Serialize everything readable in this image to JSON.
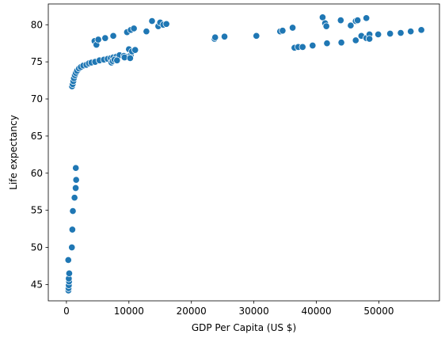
{
  "chart_data": {
    "type": "scatter",
    "xlabel": "GDP Per Capita (US $)",
    "ylabel": "Life expectancy",
    "xlim": [
      -2900,
      59700
    ],
    "ylim": [
      42.8,
      82.8
    ],
    "xticks": [
      0,
      10000,
      20000,
      30000,
      40000,
      50000
    ],
    "yticks": [
      45,
      50,
      55,
      60,
      65,
      70,
      75,
      80
    ],
    "grid": false,
    "legend": "none",
    "marker_color": "#1f77b4",
    "marker_edge_color": "#ffffff",
    "series": [
      {
        "points": [
          [
            320,
            44.2
          ],
          [
            340,
            44.5
          ],
          [
            380,
            44.9
          ],
          [
            420,
            45.4
          ],
          [
            380,
            45.8
          ],
          [
            450,
            46.5
          ],
          [
            300,
            48.3
          ],
          [
            870,
            50.0
          ],
          [
            950,
            52.4
          ],
          [
            1030,
            54.9
          ],
          [
            1300,
            56.7
          ],
          [
            1480,
            58.0
          ],
          [
            1560,
            59.1
          ],
          [
            1500,
            60.7
          ],
          [
            900,
            71.7
          ],
          [
            1000,
            72.0
          ],
          [
            1100,
            72.4
          ],
          [
            1200,
            72.8
          ],
          [
            1350,
            73.2
          ],
          [
            1500,
            73.5
          ],
          [
            1700,
            73.8
          ],
          [
            2000,
            74.1
          ],
          [
            2300,
            74.3
          ],
          [
            2700,
            74.5
          ],
          [
            3200,
            74.6
          ],
          [
            3600,
            74.8
          ],
          [
            4000,
            74.9
          ],
          [
            4600,
            75.0
          ],
          [
            5300,
            75.2
          ],
          [
            6000,
            75.3
          ],
          [
            6600,
            75.4
          ],
          [
            7100,
            75.5
          ],
          [
            7500,
            75.6
          ],
          [
            8000,
            75.7
          ],
          [
            8500,
            75.9
          ],
          [
            9200,
            75.8
          ],
          [
            9800,
            75.7
          ],
          [
            10300,
            75.9
          ],
          [
            7200,
            74.9
          ],
          [
            7400,
            75.1
          ],
          [
            7700,
            75.3
          ],
          [
            8100,
            75.2
          ],
          [
            9300,
            75.6
          ],
          [
            10000,
            76.7
          ],
          [
            10500,
            76.4
          ],
          [
            11000,
            76.6
          ],
          [
            10200,
            75.5
          ],
          [
            4500,
            77.8
          ],
          [
            4800,
            77.3
          ],
          [
            5100,
            78.0
          ],
          [
            6200,
            78.2
          ],
          [
            7500,
            78.5
          ],
          [
            9700,
            79.0
          ],
          [
            10300,
            79.3
          ],
          [
            10800,
            79.5
          ],
          [
            12800,
            79.1
          ],
          [
            13700,
            80.5
          ],
          [
            14700,
            79.8
          ],
          [
            15000,
            80.3
          ],
          [
            15500,
            80.0
          ],
          [
            16000,
            80.1
          ],
          [
            23700,
            78.1
          ],
          [
            23800,
            78.3
          ],
          [
            25300,
            78.4
          ],
          [
            30400,
            78.5
          ],
          [
            34200,
            79.1
          ],
          [
            34600,
            79.2
          ],
          [
            36200,
            79.6
          ],
          [
            36500,
            76.9
          ],
          [
            37100,
            77.0
          ],
          [
            37800,
            77.0
          ],
          [
            39400,
            77.2
          ],
          [
            41000,
            81.0
          ],
          [
            41400,
            80.2
          ],
          [
            41600,
            79.8
          ],
          [
            41700,
            77.5
          ],
          [
            43900,
            80.6
          ],
          [
            44000,
            77.6
          ],
          [
            45500,
            79.9
          ],
          [
            46300,
            80.5
          ],
          [
            46300,
            77.9
          ],
          [
            46600,
            80.6
          ],
          [
            47200,
            78.5
          ],
          [
            48000,
            80.9
          ],
          [
            48000,
            78.2
          ],
          [
            48500,
            78.7
          ],
          [
            48500,
            78.1
          ],
          [
            49900,
            78.7
          ],
          [
            51800,
            78.8
          ],
          [
            53500,
            78.9
          ],
          [
            55100,
            79.1
          ],
          [
            56800,
            79.3
          ]
        ]
      }
    ]
  }
}
